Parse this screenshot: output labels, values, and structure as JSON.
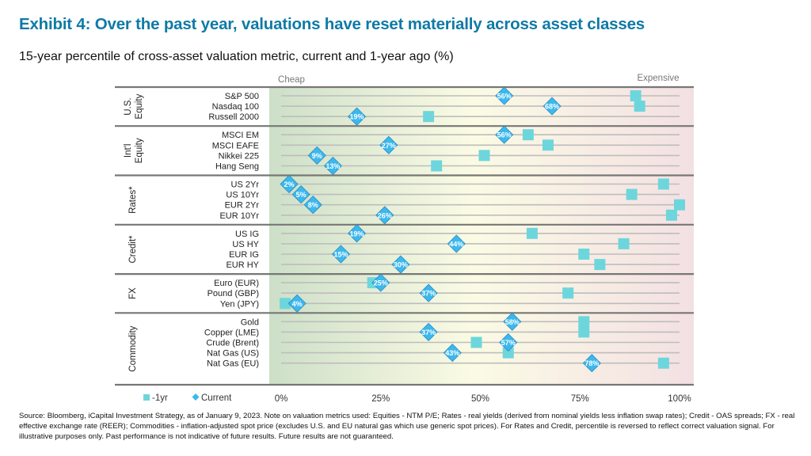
{
  "header": {
    "title": "Exhibit 4: Over the past year, valuations have reset materially across asset classes",
    "subtitle": "15-year percentile of cross-asset valuation metric, current and 1-year ago (%)"
  },
  "footer": {
    "note": "Source: Bloomberg, iCapital Investment Strategy, as of January 9, 2023. Note on valuation metrics used: Equities - NTM P/E; Rates - real yields (derived from nominal yields less inflation swap rates); Credit - OAS spreads; FX - real effective exchange rate (REER); Commodities - inflation-adjusted spot price (excludes U.S. and EU natural gas which use generic spot prices). For Rates and Credit, percentile is reversed to reflect correct valuation signal. For illustrative purposes only. Past performance is not indicative of future results. Future results are not guaranteed."
  },
  "chart_data": {
    "type": "scatter",
    "orientation": "horizontal",
    "xlim": [
      0,
      100
    ],
    "x_ticks": [
      "0%",
      "25%",
      "50%",
      "75%",
      "100%"
    ],
    "x_tick_values": [
      0,
      25,
      50,
      75,
      100
    ],
    "annotation_left": "Cheap",
    "annotation_right": "Expensive",
    "legend": {
      "placement": "bottom-left",
      "items": [
        "-1yr",
        "Current"
      ]
    },
    "grid": true,
    "colors": {
      "one_year_ago": "#6dd6dc",
      "current": "#3cb8ee",
      "current_stroke": "#2b8dc0",
      "title": "#0f7aa6",
      "cheap": "#cddfc8",
      "neutral": "#fbfbe4",
      "expensive": "#f3e0e3"
    },
    "groups": [
      {
        "name": "U.S. Equity",
        "lines": [
          "U.S.",
          "Equity"
        ],
        "items": [
          {
            "label": "S&P 500",
            "current": 56,
            "one_year_ago": 89
          },
          {
            "label": "Nasdaq 100",
            "current": 68,
            "one_year_ago": 90
          },
          {
            "label": "Russell 2000",
            "current": 19,
            "one_year_ago": 37
          }
        ]
      },
      {
        "name": "Int'l Equity",
        "lines": [
          "Int'l",
          "Equity"
        ],
        "items": [
          {
            "label": "MSCI EM",
            "current": 56,
            "one_year_ago": 62
          },
          {
            "label": "MSCI EAFE",
            "current": 27,
            "one_year_ago": 67
          },
          {
            "label": "Nikkei 225",
            "current": 9,
            "one_year_ago": 51
          },
          {
            "label": "Hang Seng",
            "current": 13,
            "one_year_ago": 39
          }
        ]
      },
      {
        "name": "Rates*",
        "lines": [
          "Rates*"
        ],
        "items": [
          {
            "label": "US 2Yr",
            "current": 2,
            "one_year_ago": 96
          },
          {
            "label": "US 10Yr",
            "current": 5,
            "one_year_ago": 88
          },
          {
            "label": "EUR 2Yr",
            "current": 8,
            "one_year_ago": 100
          },
          {
            "label": "EUR 10Yr",
            "current": 26,
            "one_year_ago": 98
          }
        ]
      },
      {
        "name": "Credit*",
        "lines": [
          "Credit*"
        ],
        "items": [
          {
            "label": "US IG",
            "current": 19,
            "one_year_ago": 63
          },
          {
            "label": "US HY",
            "current": 44,
            "one_year_ago": 86
          },
          {
            "label": "EUR IG",
            "current": 15,
            "one_year_ago": 76
          },
          {
            "label": "EUR HY",
            "current": 30,
            "one_year_ago": 80
          }
        ]
      },
      {
        "name": "FX",
        "lines": [
          "FX"
        ],
        "items": [
          {
            "label": "Euro (EUR)",
            "current": 25,
            "one_year_ago": 23
          },
          {
            "label": "Pound (GBP)",
            "current": 37,
            "one_year_ago": 72
          },
          {
            "label": "Yen (JPY)",
            "current": 4,
            "one_year_ago": 1
          }
        ]
      },
      {
        "name": "Commodity",
        "lines": [
          "Commodity"
        ],
        "items": [
          {
            "label": "Gold",
            "current": 58,
            "one_year_ago": 76
          },
          {
            "label": "Copper (LME)",
            "current": 37,
            "one_year_ago": 76
          },
          {
            "label": "Crude (Brent)",
            "current": 57,
            "one_year_ago": 49
          },
          {
            "label": "Nat Gas (US)",
            "current": 43,
            "one_year_ago": 57
          },
          {
            "label": "Nat Gas (EU)",
            "current": 78,
            "one_year_ago": 96
          }
        ]
      }
    ]
  }
}
